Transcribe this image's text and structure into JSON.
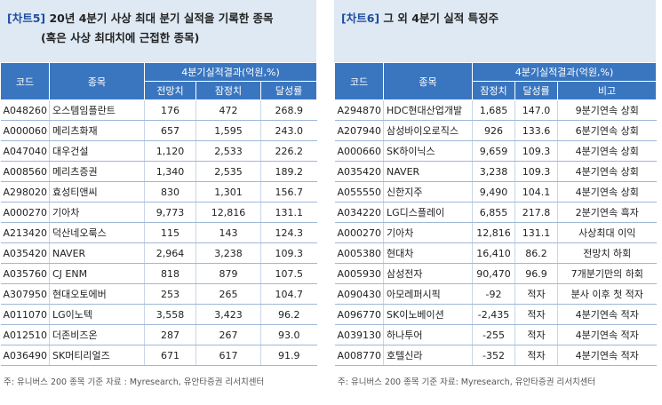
{
  "left": {
    "title_tag": "[차트5]",
    "title": "20년 4분기 사상 최대 분기 실적을 기록한 종목",
    "subtitle": "(혹은 사상 최대치에 근접한 종목)",
    "headers": {
      "code": "코드",
      "name": "종목",
      "group": "4분기실적결과(억원,%)",
      "cols": [
        "전망치",
        "잠정치",
        "달성률"
      ]
    },
    "rows": [
      [
        "A048260",
        "오스템임플란트",
        "176",
        "472",
        "268.9"
      ],
      [
        "A000060",
        "메리츠화재",
        "657",
        "1,595",
        "243.0"
      ],
      [
        "A047040",
        "대우건설",
        "1,120",
        "2,533",
        "226.2"
      ],
      [
        "A008560",
        "메리츠증권",
        "1,340",
        "2,535",
        "189.2"
      ],
      [
        "A298020",
        "효성티앤씨",
        "830",
        "1,301",
        "156.7"
      ],
      [
        "A000270",
        "기아차",
        "9,773",
        "12,816",
        "131.1"
      ],
      [
        "A213420",
        "덕산네오룩스",
        "115",
        "143",
        "124.3"
      ],
      [
        "A035420",
        "NAVER",
        "2,964",
        "3,238",
        "109.3"
      ],
      [
        "A035760",
        "CJ ENM",
        "818",
        "879",
        "107.5"
      ],
      [
        "A307950",
        "현대오토에버",
        "253",
        "265",
        "104.7"
      ],
      [
        "A011070",
        "LG이노텍",
        "3,558",
        "3,423",
        "96.2"
      ],
      [
        "A012510",
        "더존비즈온",
        "287",
        "267",
        "93.0"
      ],
      [
        "A036490",
        "SK머티리얼즈",
        "671",
        "617",
        "91.9"
      ]
    ],
    "footer": "주: 유니버스 200 종목 기준     자료 : Myresearch, 유안타증권 리서치센터"
  },
  "right": {
    "title_tag": "[차트6]",
    "title": "그 외 4분기 실적 특징주",
    "headers": {
      "code": "코드",
      "name": "종목",
      "group": "4분기실적결과(억원,%)",
      "cols": [
        "잠정치",
        "달성률",
        "비고"
      ]
    },
    "rows": [
      [
        "A294870",
        "HDC현대산업개발",
        "1,685",
        "147.0",
        "9분기연속 상회"
      ],
      [
        "A207940",
        "삼성바이오로직스",
        "926",
        "133.6",
        "6분기연속 상회"
      ],
      [
        "A000660",
        "SK하이닉스",
        "9,659",
        "109.3",
        "4분기연속 상회"
      ],
      [
        "A035420",
        "NAVER",
        "3,238",
        "109.3",
        "4분기연속 상회"
      ],
      [
        "A055550",
        "신한지주",
        "9,490",
        "104.1",
        "4분기연속 상회"
      ],
      [
        "A034220",
        "LG디스플레이",
        "6,855",
        "217.8",
        "2분기연속 흑자"
      ],
      [
        "A000270",
        "기아차",
        "12,816",
        "131.1",
        "사상최대 이익"
      ],
      [
        "A005380",
        "현대차",
        "16,410",
        "86.2",
        "전망치 하회"
      ],
      [
        "A005930",
        "삼성전자",
        "90,470",
        "96.9",
        "7개분기만의 하회"
      ],
      [
        "A090430",
        "아모레퍼시픽",
        "-92",
        "적자",
        "분사 이후 첫 적자"
      ],
      [
        "A096770",
        "SK이노베이션",
        "-2,435",
        "적자",
        "4분기연속 적자"
      ],
      [
        "A039130",
        "하나투어",
        "-255",
        "적자",
        "4분기연속 적자"
      ],
      [
        "A008770",
        "호텔신라",
        "-352",
        "적자",
        "4분기연속 적자"
      ]
    ],
    "footer": "주: 유니버스 200 종목 기준     자료: Myresearch, 유안타증권 리서치센터"
  }
}
